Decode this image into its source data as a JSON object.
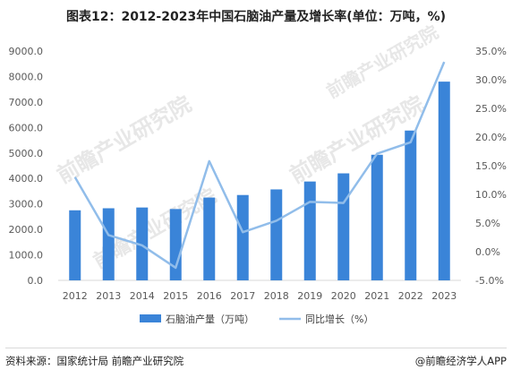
{
  "title": "图表12：2012-2023年中国石脑油产量及增长率(单位：万吨，%)",
  "source": "资料来源：国家统计局 前瞻产业研究院",
  "brand": "@前瞻经济学人APP",
  "watermark": "前瞻产业研究院",
  "colors": {
    "bar": "#3a84d8",
    "line": "#91bdea"
  },
  "chart_data": {
    "type": "bar",
    "categories": [
      "2012",
      "2013",
      "2014",
      "2015",
      "2016",
      "2017",
      "2018",
      "2019",
      "2020",
      "2021",
      "2022",
      "2023"
    ],
    "series": [
      {
        "name": "石脑油产量（万吨）",
        "type": "bar",
        "axis": "left",
        "values": [
          2750,
          2830,
          2860,
          2800,
          3250,
          3350,
          3570,
          3880,
          4200,
          4930,
          5880,
          7800
        ]
      },
      {
        "name": "同比增长（%）",
        "type": "line",
        "axis": "right",
        "values": [
          13.0,
          2.9,
          1.1,
          -2.8,
          15.8,
          3.4,
          5.4,
          8.7,
          8.5,
          17.1,
          19.1,
          33.1
        ]
      }
    ],
    "ylim_left": [
      0,
      9000
    ],
    "ylim_right": [
      -5,
      35
    ],
    "yticks_left": [
      "0.0",
      "1000.0",
      "2000.0",
      "3000.0",
      "4000.0",
      "5000.0",
      "6000.0",
      "7000.0",
      "8000.0",
      "9000.0"
    ],
    "yticks_right": [
      "-5.0%",
      "0.0%",
      "5.0%",
      "10.0%",
      "15.0%",
      "20.0%",
      "25.0%",
      "30.0%",
      "35.0%"
    ],
    "legend_position": "bottom",
    "grid": false
  }
}
